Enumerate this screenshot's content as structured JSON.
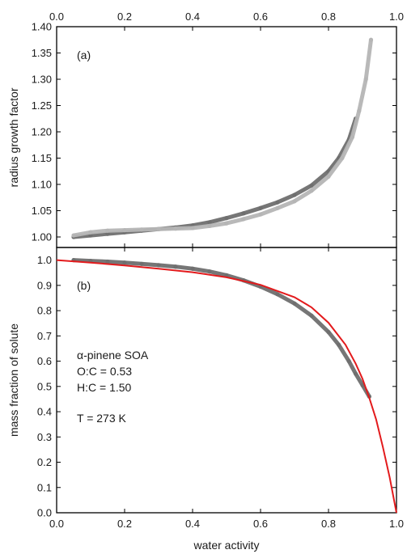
{
  "colors": {
    "data_dark": "#6f6f6f",
    "data_light": "#b5b5b5",
    "model_line": "#e31a1c"
  },
  "chart_data": [
    {
      "panel": "(a)",
      "type": "scatter",
      "xlabel": "",
      "ylabel": "radius growth factor",
      "xlim": [
        0.0,
        1.0
      ],
      "ylim": [
        0.98,
        1.4
      ],
      "xticks": [
        "0.0",
        "0.2",
        "0.4",
        "0.6",
        "0.8",
        "1.0"
      ],
      "xticks_position": "top",
      "yticks": [
        "1.00",
        "1.05",
        "1.10",
        "1.15",
        "1.20",
        "1.25",
        "1.30",
        "1.35",
        "1.40"
      ],
      "series": [
        {
          "color": "dark-gray",
          "x": [
            0.05,
            0.1,
            0.15,
            0.2,
            0.25,
            0.3,
            0.35,
            0.4,
            0.45,
            0.5,
            0.55,
            0.6,
            0.65,
            0.7,
            0.75,
            0.8,
            0.83,
            0.86,
            0.88
          ],
          "y": [
            1.0,
            1.003,
            1.006,
            1.009,
            1.012,
            1.015,
            1.018,
            1.022,
            1.028,
            1.036,
            1.045,
            1.055,
            1.066,
            1.08,
            1.098,
            1.125,
            1.15,
            1.185,
            1.225
          ]
        },
        {
          "color": "light-gray",
          "x": [
            0.05,
            0.1,
            0.15,
            0.2,
            0.25,
            0.3,
            0.35,
            0.4,
            0.45,
            0.5,
            0.55,
            0.6,
            0.65,
            0.7,
            0.75,
            0.8,
            0.84,
            0.87,
            0.89,
            0.91,
            0.925
          ],
          "y": [
            1.003,
            1.009,
            1.012,
            1.013,
            1.014,
            1.015,
            1.016,
            1.017,
            1.021,
            1.026,
            1.034,
            1.043,
            1.055,
            1.068,
            1.088,
            1.115,
            1.15,
            1.19,
            1.24,
            1.3,
            1.375
          ]
        }
      ]
    },
    {
      "panel": "(b)",
      "type": "scatter",
      "xlabel": "water activity",
      "ylabel": "mass fraction of solute",
      "xlim": [
        0.0,
        1.0
      ],
      "ylim": [
        0.0,
        1.05
      ],
      "xticks": [
        "0.0",
        "0.2",
        "0.4",
        "0.6",
        "0.8",
        "1.0"
      ],
      "yticks": [
        "0.0",
        "0.1",
        "0.2",
        "0.3",
        "0.4",
        "0.5",
        "0.6",
        "0.7",
        "0.8",
        "0.9",
        "1.0"
      ],
      "annotations": [
        "α-pinene SOA",
        "O:C = 0.53",
        "H:C = 1.50",
        "T = 273 K"
      ],
      "series": [
        {
          "color": "gray",
          "x": [
            0.05,
            0.1,
            0.15,
            0.2,
            0.25,
            0.3,
            0.35,
            0.4,
            0.45,
            0.5,
            0.55,
            0.6,
            0.65,
            0.7,
            0.75,
            0.8,
            0.83,
            0.86,
            0.88,
            0.9,
            0.92
          ],
          "y": [
            1.0,
            0.997,
            0.994,
            0.99,
            0.985,
            0.98,
            0.974,
            0.966,
            0.955,
            0.94,
            0.92,
            0.895,
            0.865,
            0.828,
            0.78,
            0.715,
            0.665,
            0.6,
            0.55,
            0.505,
            0.46
          ]
        },
        {
          "color": "red",
          "type": "line",
          "x": [
            0.0,
            0.1,
            0.2,
            0.3,
            0.4,
            0.5,
            0.6,
            0.7,
            0.75,
            0.8,
            0.85,
            0.88,
            0.9,
            0.92,
            0.94,
            0.96,
            0.98,
            1.0
          ],
          "y": [
            1.0,
            0.99,
            0.979,
            0.966,
            0.952,
            0.932,
            0.902,
            0.853,
            0.813,
            0.752,
            0.665,
            0.59,
            0.53,
            0.455,
            0.37,
            0.26,
            0.14,
            0.0
          ]
        }
      ]
    }
  ]
}
